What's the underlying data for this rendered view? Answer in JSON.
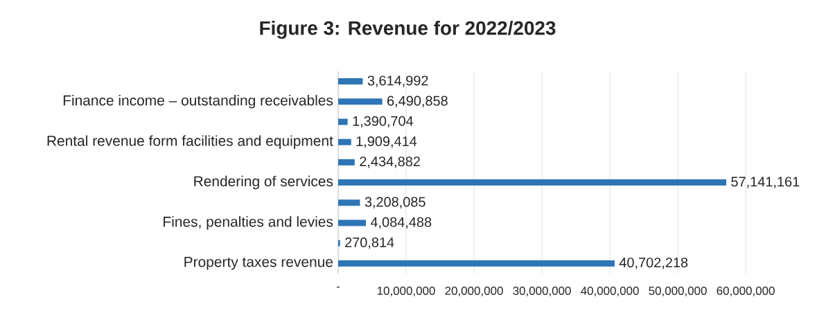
{
  "chart_data": {
    "type": "bar",
    "orientation": "horizontal",
    "title": "Figure 3: Revenue for 2022/2023",
    "categories": [
      null,
      "Finance income – outstanding receivables",
      null,
      "Rental revenue form facilities and equipment",
      null,
      "Rendering of services",
      null,
      "Fines, penalties and levies",
      null,
      "Property taxes revenue"
    ],
    "values": [
      3614992,
      6490858,
      1390704,
      1909414,
      2434882,
      57141161,
      3208085,
      4084488,
      270814,
      40702218
    ],
    "value_labels": [
      "3,614,992",
      "6,490,858",
      "1,390,704",
      "1,909,414",
      "2,434,882",
      "57,141,161",
      "3,208,085",
      "4,084,488",
      "270,814",
      "40,702,218"
    ],
    "color": "#2e75b6",
    "xlim": [
      0,
      60000000
    ],
    "xticks": [
      {
        "value": 0,
        "label": "-"
      },
      {
        "value": 10000000,
        "label": "10,000,000"
      },
      {
        "value": 20000000,
        "label": "20,000,000"
      },
      {
        "value": 30000000,
        "label": "30,000,000"
      },
      {
        "value": 40000000,
        "label": "40,000,000"
      },
      {
        "value": 50000000,
        "label": "50,000,000"
      },
      {
        "value": 60000000,
        "label": "60,000,000"
      }
    ],
    "grid": "x"
  }
}
